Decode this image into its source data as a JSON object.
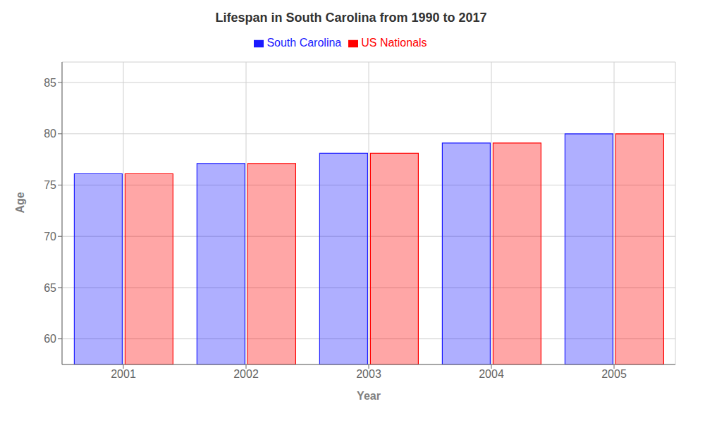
{
  "chart_data": {
    "type": "bar",
    "title": "Lifespan in South Carolina from 1990 to 2017",
    "x_label": "Year",
    "y_label": "Age",
    "categories": [
      "2001",
      "2002",
      "2003",
      "2004",
      "2005"
    ],
    "series": [
      {
        "name": "South Carolina",
        "color": "#1a1aff",
        "values": [
          76.1,
          77.1,
          78.1,
          79.1,
          80.0
        ]
      },
      {
        "name": "US Nationals",
        "color": "#ff0000",
        "values": [
          76.1,
          77.1,
          78.1,
          79.1,
          80.0
        ]
      }
    ],
    "ylim": [
      57.5,
      87
    ],
    "yticks": [
      60,
      65,
      70,
      75,
      80,
      85
    ],
    "grid": true,
    "legend": "top"
  }
}
